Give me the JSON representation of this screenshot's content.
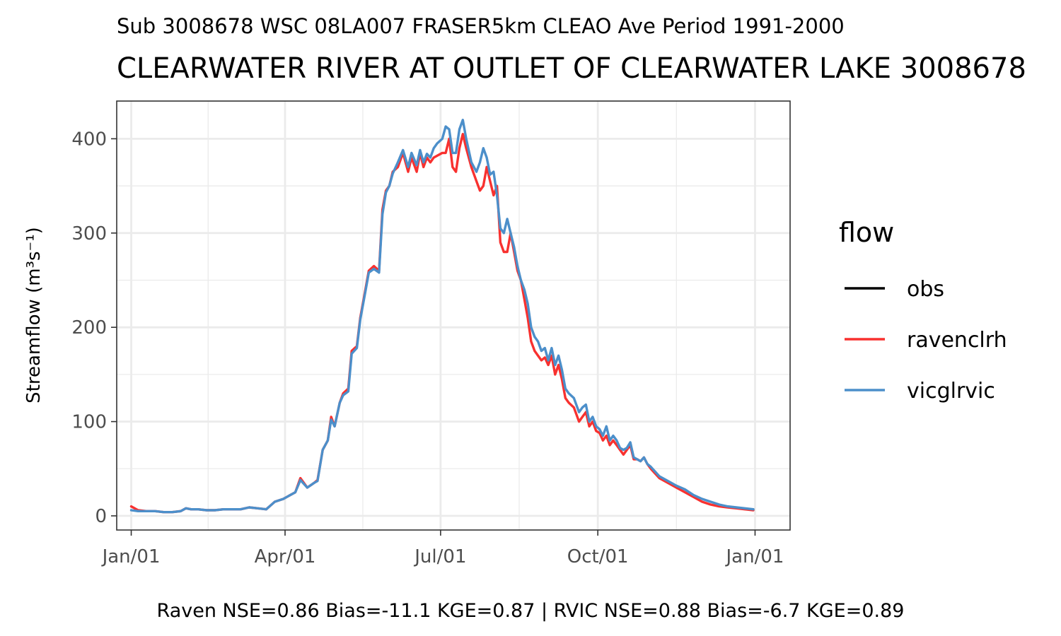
{
  "chart_data": {
    "type": "line",
    "subtitle": "Sub 3008678 WSC 08LA007 FRASER5km CLEAO Ave Period 1991-2000",
    "title": "CLEARWATER RIVER AT OUTLET OF CLEARWATER LAKE 3008678",
    "ylabel": "Streamflow (m³s⁻¹)",
    "ylim": [
      -15,
      440
    ],
    "yticks": [
      0,
      100,
      200,
      300,
      400
    ],
    "xticks": [
      "Jan/01",
      "Apr/01",
      "Jul/01",
      "Oct/01",
      "Jan/01"
    ],
    "xtick_days": [
      1,
      91,
      182,
      274,
      366
    ],
    "xlim": [
      -7.5,
      386.5
    ],
    "grid": true,
    "legend": {
      "title": "flow",
      "position": "right"
    },
    "caption": "Raven NSE=0.86 Bias=-11.1 KGE=0.87 | RVIC NSE=0.88 Bias=-6.7 KGE=0.89",
    "series": [
      {
        "name": "obs",
        "color": "#000000",
        "x": [],
        "y": []
      },
      {
        "name": "ravenclrh",
        "color": "#f8312f",
        "x": [
          1,
          5,
          10,
          15,
          20,
          25,
          30,
          33,
          36,
          40,
          45,
          50,
          55,
          60,
          65,
          70,
          75,
          80,
          85,
          90,
          92,
          94,
          97,
          100,
          104,
          108,
          110,
          113,
          116,
          118,
          120,
          123,
          125,
          128,
          130,
          133,
          135,
          138,
          140,
          143,
          146,
          148,
          150,
          152,
          154,
          157,
          160,
          163,
          165,
          168,
          170,
          172,
          174,
          176,
          178,
          180,
          183,
          185,
          187,
          189,
          191,
          193,
          195,
          197,
          200,
          203,
          205,
          207,
          209,
          211,
          213,
          215,
          217,
          219,
          221,
          223,
          225,
          227,
          229,
          231,
          233,
          235,
          237,
          239,
          241,
          243,
          245,
          247,
          249,
          251,
          253,
          255,
          257,
          260,
          263,
          265,
          267,
          269,
          271,
          273,
          275,
          277,
          279,
          281,
          283,
          285,
          287,
          289,
          291,
          293,
          295,
          297,
          299,
          301,
          303,
          305,
          310,
          315,
          320,
          325,
          330,
          335,
          340,
          345,
          350,
          355,
          360,
          365
        ],
        "y": [
          10,
          6,
          5,
          5,
          4,
          4,
          5,
          8,
          7,
          7,
          6,
          6,
          7,
          7,
          7,
          9,
          8,
          7,
          15,
          18,
          20,
          22,
          25,
          40,
          30,
          35,
          38,
          70,
          80,
          105,
          95,
          120,
          130,
          135,
          175,
          180,
          210,
          240,
          260,
          265,
          260,
          325,
          345,
          350,
          365,
          370,
          385,
          365,
          380,
          365,
          385,
          370,
          380,
          375,
          380,
          382,
          385,
          385,
          400,
          370,
          365,
          390,
          405,
          390,
          370,
          355,
          345,
          350,
          370,
          355,
          340,
          350,
          290,
          280,
          280,
          300,
          280,
          260,
          250,
          230,
          210,
          185,
          175,
          170,
          165,
          168,
          160,
          170,
          150,
          160,
          145,
          125,
          120,
          115,
          100,
          105,
          110,
          95,
          100,
          90,
          88,
          80,
          85,
          75,
          80,
          75,
          70,
          65,
          70,
          75,
          60,
          60,
          58,
          62,
          55,
          50,
          40,
          35,
          30,
          25,
          20,
          15,
          12,
          10,
          9,
          8,
          7,
          6
        ]
      },
      {
        "name": "vicglrvic",
        "color": "#4c8fca",
        "x": [
          1,
          5,
          10,
          15,
          20,
          25,
          30,
          33,
          36,
          40,
          45,
          50,
          55,
          60,
          65,
          70,
          75,
          80,
          85,
          90,
          92,
          94,
          97,
          100,
          104,
          108,
          110,
          113,
          116,
          118,
          120,
          123,
          125,
          128,
          130,
          133,
          135,
          138,
          140,
          143,
          146,
          148,
          150,
          152,
          154,
          157,
          160,
          163,
          165,
          168,
          170,
          172,
          174,
          176,
          178,
          180,
          183,
          185,
          187,
          189,
          191,
          193,
          195,
          197,
          200,
          203,
          205,
          207,
          209,
          211,
          213,
          215,
          217,
          219,
          221,
          223,
          225,
          227,
          229,
          231,
          233,
          235,
          237,
          239,
          241,
          243,
          245,
          247,
          249,
          251,
          253,
          255,
          257,
          260,
          263,
          265,
          267,
          269,
          271,
          273,
          275,
          277,
          279,
          281,
          283,
          285,
          287,
          289,
          291,
          293,
          295,
          297,
          299,
          301,
          303,
          305,
          310,
          315,
          320,
          325,
          330,
          335,
          340,
          345,
          350,
          355,
          360,
          365
        ],
        "y": [
          6,
          5,
          5,
          5,
          4,
          4,
          5,
          8,
          7,
          7,
          6,
          6,
          7,
          7,
          7,
          9,
          8,
          7,
          15,
          18,
          20,
          22,
          25,
          38,
          30,
          35,
          37,
          70,
          80,
          102,
          95,
          120,
          128,
          132,
          172,
          178,
          208,
          238,
          258,
          262,
          258,
          320,
          343,
          350,
          363,
          375,
          388,
          370,
          385,
          372,
          388,
          375,
          384,
          380,
          390,
          395,
          400,
          413,
          410,
          385,
          385,
          410,
          420,
          400,
          375,
          365,
          375,
          390,
          380,
          362,
          365,
          340,
          305,
          300,
          315,
          300,
          285,
          265,
          250,
          240,
          225,
          200,
          190,
          185,
          175,
          178,
          165,
          178,
          160,
          170,
          155,
          135,
          130,
          125,
          110,
          115,
          118,
          100,
          105,
          95,
          92,
          85,
          95,
          80,
          85,
          80,
          72,
          70,
          72,
          78,
          62,
          60,
          58,
          62,
          55,
          52,
          42,
          37,
          32,
          28,
          22,
          18,
          15,
          12,
          10,
          9,
          8,
          7
        ]
      }
    ]
  }
}
